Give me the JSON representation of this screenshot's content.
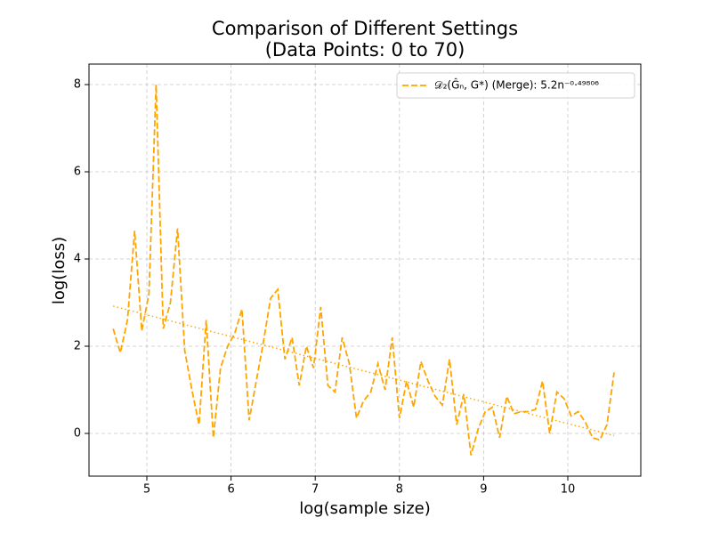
{
  "chart_data": {
    "type": "line",
    "title": "Comparison of Different Settings",
    "subtitle": "(Data Points: 0 to 70)",
    "x_label": "log(sample size)",
    "y_label": "log(loss)",
    "x": [
      4.6,
      4.685,
      4.77,
      4.855,
      4.94,
      5.025,
      5.11,
      5.195,
      5.28,
      5.365,
      5.45,
      5.535,
      5.62,
      5.705,
      5.79,
      5.875,
      5.96,
      6.045,
      6.13,
      6.215,
      6.3,
      6.385,
      6.47,
      6.555,
      6.64,
      6.725,
      6.81,
      6.895,
      6.98,
      7.065,
      7.15,
      7.235,
      7.32,
      7.405,
      7.49,
      7.575,
      7.66,
      7.745,
      7.83,
      7.915,
      8.0,
      8.085,
      8.17,
      8.255,
      8.34,
      8.425,
      8.51,
      8.595,
      8.68,
      8.765,
      8.85,
      8.935,
      9.02,
      9.105,
      9.19,
      9.275,
      9.36,
      9.445,
      9.53,
      9.615,
      9.7,
      9.785,
      9.87,
      9.955,
      10.04,
      10.125,
      10.21,
      10.295,
      10.38,
      10.465,
      10.55
    ],
    "series": [
      {
        "name": "𝒟₂(Ĝₙ, G*) (Merge): 5.2n⁻⁰·⁴⁹⁸⁰⁶",
        "color": "#ffa500",
        "values": [
          2.4,
          1.85,
          2.6,
          4.65,
          2.35,
          3.2,
          8.0,
          2.4,
          3.0,
          4.7,
          1.9,
          1.0,
          0.2,
          2.6,
          -0.1,
          1.5,
          2.0,
          2.3,
          2.85,
          0.3,
          1.2,
          2.1,
          3.1,
          3.3,
          1.7,
          2.2,
          1.1,
          2.0,
          1.5,
          2.9,
          1.1,
          0.95,
          2.2,
          1.6,
          0.35,
          0.75,
          0.95,
          1.6,
          1.0,
          2.2,
          0.35,
          1.2,
          0.6,
          1.65,
          1.2,
          0.85,
          0.65,
          1.7,
          0.2,
          0.9,
          -0.5,
          0.1,
          0.5,
          0.6,
          -0.1,
          0.85,
          0.45,
          0.5,
          0.5,
          0.55,
          1.2,
          0.0,
          0.95,
          0.8,
          0.4,
          0.5,
          0.25,
          -0.1,
          -0.15,
          0.2,
          1.4
        ]
      }
    ],
    "trend": {
      "x": [
        4.6,
        10.55
      ],
      "values": [
        2.92,
        -0.05
      ],
      "color": "#ffa500"
    },
    "xlim": [
      4.313,
      10.867
    ],
    "ylim": [
      -0.98,
      8.47
    ],
    "xticks": [
      5,
      6,
      7,
      8,
      9,
      10
    ],
    "yticks": [
      0,
      2,
      4,
      6,
      8
    ],
    "grid": true,
    "legend": "upper right"
  }
}
